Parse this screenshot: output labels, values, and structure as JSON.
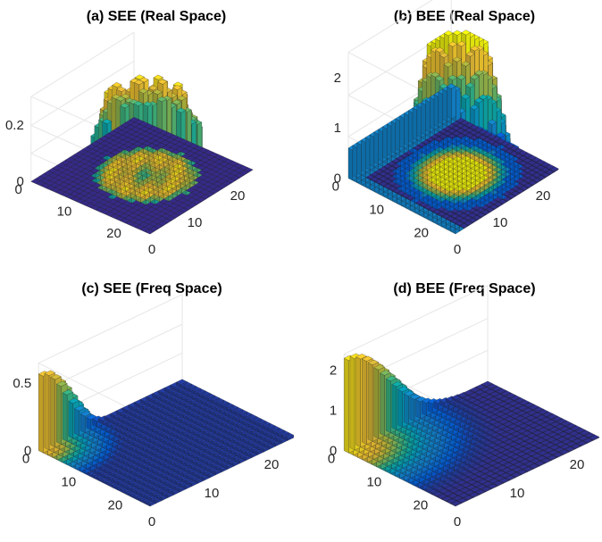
{
  "chart_data": [
    {
      "type": "bar3d",
      "title": "(a) SEE (Real Space)",
      "zlim": [
        0,
        0.3
      ],
      "ztick_labels": [
        "0",
        "0.2"
      ],
      "row_tick_labels": [
        "0",
        "10",
        "20"
      ],
      "col_tick_labels": [
        "0",
        "10",
        "20"
      ],
      "grid_size": [
        24,
        24
      ],
      "grid": true,
      "colormap": "parula",
      "shape": {
        "kind": "ring",
        "center": [
          12,
          12
        ],
        "radius": 8,
        "peak": 0.29,
        "dip": 0.18,
        "background": 0.0
      }
    },
    {
      "type": "bar3d",
      "title": "(b) BEE (Real Space)",
      "zlim": [
        0,
        2.5
      ],
      "ztick_labels": [
        "0",
        "1",
        "2"
      ],
      "row_tick_labels": [
        "0",
        "10",
        "20"
      ],
      "col_tick_labels": [
        "0",
        "10",
        "20"
      ],
      "grid_size": [
        24,
        24
      ],
      "grid": true,
      "colormap": "parula",
      "shape": {
        "kind": "plateau",
        "center": [
          12,
          12
        ],
        "radius": 8,
        "peak": 2.5,
        "edge_level": 0.6,
        "background": 0.02
      }
    },
    {
      "type": "bar3d",
      "title": "(c) SEE (Freq Space)",
      "zlim": [
        0,
        0.65
      ],
      "ztick_labels": [
        "0",
        "0.5"
      ],
      "row_tick_labels": [
        "0",
        "10",
        "20"
      ],
      "col_tick_labels": [
        "0",
        "10",
        "20"
      ],
      "grid_size": [
        24,
        24
      ],
      "grid": true,
      "colormap": "parula",
      "shape": {
        "kind": "corner_decay",
        "peak": 0.57,
        "decay": 4.0,
        "background": 0.02
      }
    },
    {
      "type": "bar3d",
      "title": "(d) BEE (Freq Space)",
      "zlim": [
        0,
        2.4
      ],
      "ztick_labels": [
        "0",
        "1",
        "2"
      ],
      "row_tick_labels": [
        "0",
        "10",
        "20"
      ],
      "col_tick_labels": [
        "0",
        "10",
        "20"
      ],
      "grid_size": [
        24,
        24
      ],
      "grid": true,
      "colormap": "parula",
      "shape": {
        "kind": "corner_decay",
        "peak": 2.3,
        "decay": 6.5,
        "background": 0.02
      }
    }
  ]
}
